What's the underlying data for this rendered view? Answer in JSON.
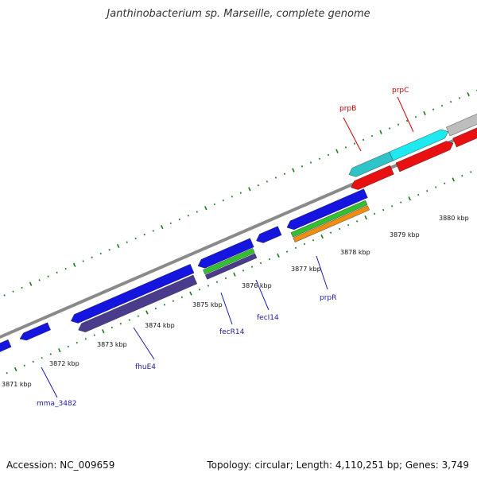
{
  "title": "Janthinobacterium sp. Marseille, complete genome",
  "footer": {
    "accession": "Accession: NC_009659",
    "summary": "Topology: circular; Length: 4,110,251 bp; Genes: 3,749"
  },
  "colors": {
    "backbone": "#8a8a8a",
    "tick": "#1a7a1a",
    "blue": "#1515e0",
    "darkpurple": "#4a3c8c",
    "cyan": "#2fc4c8",
    "brightcyan": "#1ee8f0",
    "red": "#e81010",
    "grey": "#bdbdbd",
    "green": "#30c030",
    "orange": "#f08c10",
    "label_blue": "#1a1aaa",
    "label_red": "#cc0000"
  },
  "scale_labels": [
    "3871 kbp",
    "3872 kbp",
    "3873 kbp",
    "3874 kbp",
    "3875 kbp",
    "3876 kbp",
    "3877 kbp",
    "3878 kbp",
    "3879 kbp",
    "3880 kbp"
  ],
  "gene_labels": [
    {
      "text": "mma_3482",
      "color": "blue"
    },
    {
      "text": "fhuE4",
      "color": "blue"
    },
    {
      "text": "fecR14",
      "color": "blue"
    },
    {
      "text": "fecI14",
      "color": "blue"
    },
    {
      "text": "prpR",
      "color": "blue"
    },
    {
      "text": "prpB",
      "color": "red"
    },
    {
      "text": "prpC",
      "color": "red"
    }
  ]
}
